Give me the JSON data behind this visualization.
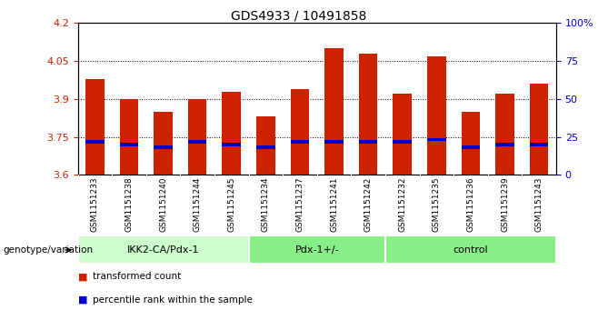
{
  "title": "GDS4933 / 10491858",
  "samples": [
    "GSM1151233",
    "GSM1151238",
    "GSM1151240",
    "GSM1151244",
    "GSM1151245",
    "GSM1151234",
    "GSM1151237",
    "GSM1151241",
    "GSM1151242",
    "GSM1151232",
    "GSM1151235",
    "GSM1151236",
    "GSM1151239",
    "GSM1151243"
  ],
  "bar_values": [
    3.98,
    3.9,
    3.85,
    3.9,
    3.93,
    3.83,
    3.94,
    4.1,
    4.08,
    3.92,
    4.07,
    3.85,
    3.92,
    3.96
  ],
  "percentile_values": [
    3.73,
    3.72,
    3.71,
    3.73,
    3.72,
    3.71,
    3.73,
    3.73,
    3.73,
    3.73,
    3.74,
    3.71,
    3.72,
    3.72
  ],
  "ylim": [
    3.6,
    4.2
  ],
  "yticks": [
    3.6,
    3.75,
    3.9,
    4.05,
    4.2
  ],
  "ytick_labels": [
    "3.6",
    "3.75",
    "3.9",
    "4.05",
    "4.2"
  ],
  "right_yticks": [
    0,
    25,
    50,
    75,
    100
  ],
  "right_ytick_labels": [
    "0",
    "25",
    "50",
    "75",
    "100%"
  ],
  "grid_values": [
    3.75,
    3.9,
    4.05
  ],
  "bar_color": "#cc2200",
  "percentile_color": "#0000cc",
  "bar_width": 0.55,
  "group_data": [
    {
      "label": "IKK2-CA/Pdx-1",
      "start": 0,
      "end": 5,
      "color": "#ccffcc"
    },
    {
      "label": "Pdx-1+/-",
      "start": 5,
      "end": 9,
      "color": "#88ee88"
    },
    {
      "label": "control",
      "start": 9,
      "end": 14,
      "color": "#88ee88"
    }
  ],
  "xlabel_left": "genotype/variation",
  "legend_red": "transformed count",
  "legend_blue": "percentile rank within the sample",
  "background_color": "#ffffff",
  "yaxis_left_color": "#cc2200",
  "yaxis_right_color": "#0000cc",
  "ticklabel_bg_color": "#d8d8d8",
  "ticklabel_divider_color": "#ffffff"
}
